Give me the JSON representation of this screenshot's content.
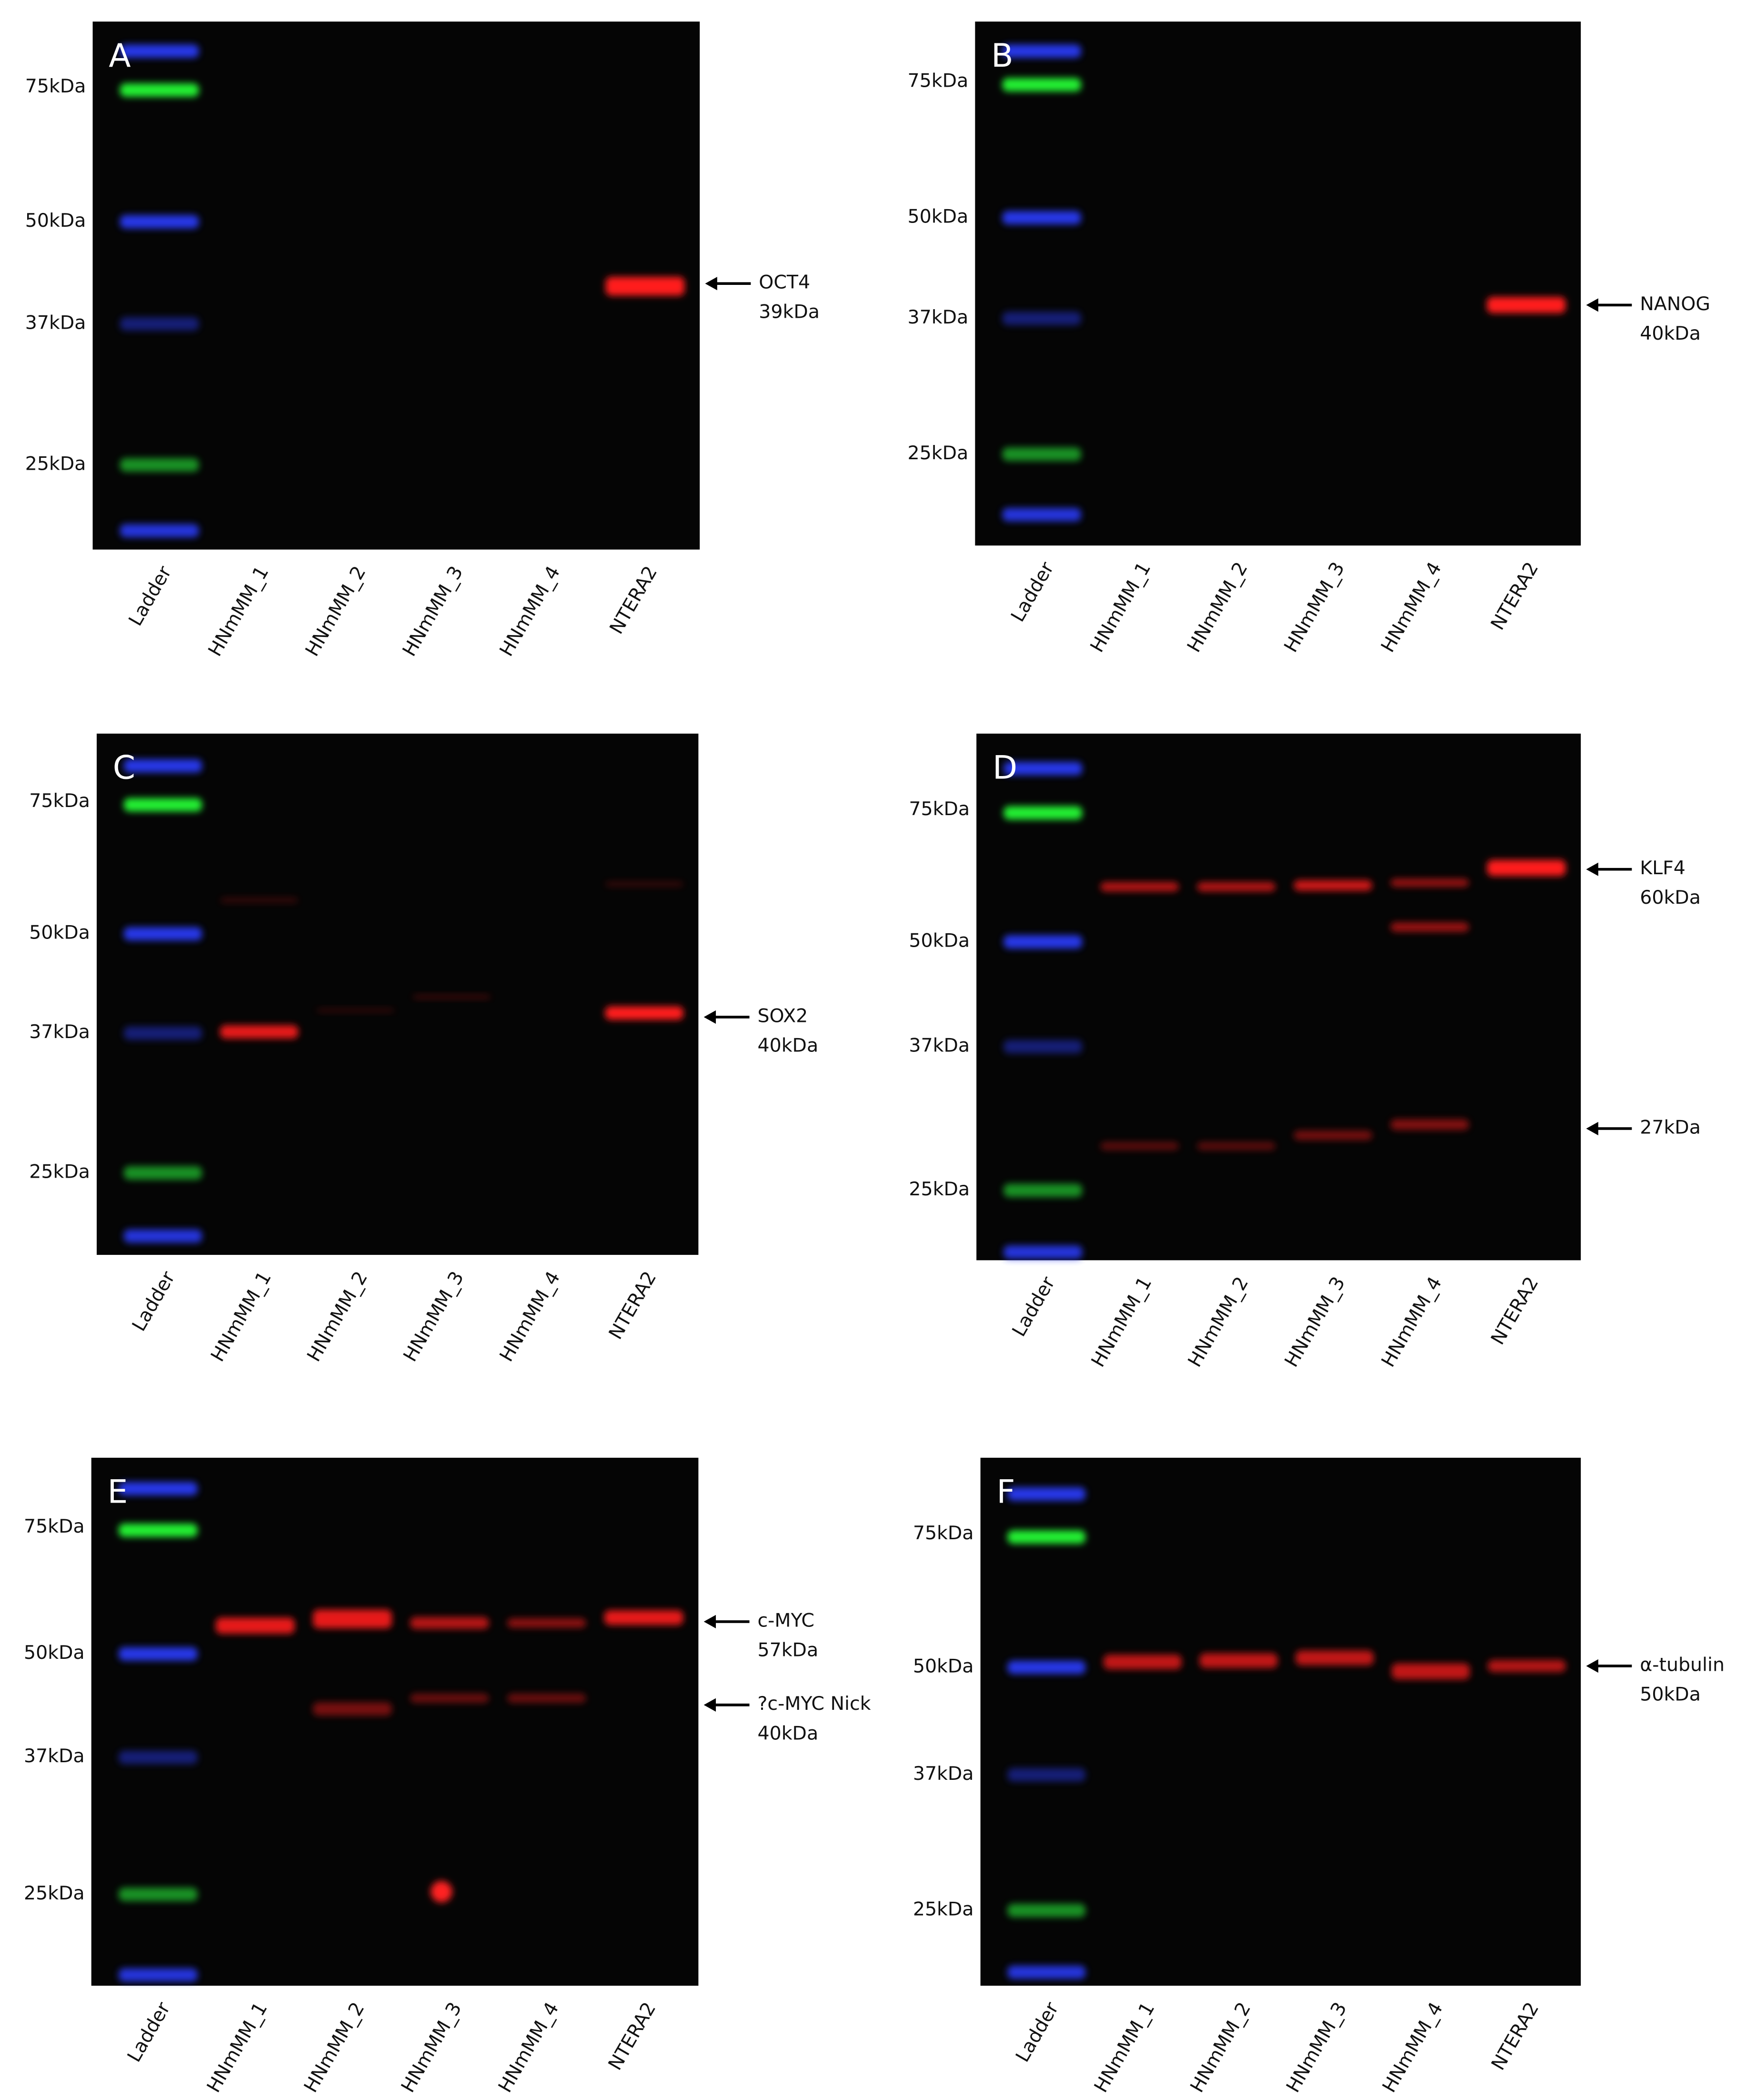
{
  "panels": [
    {
      "letter": "A",
      "markers": [
        "75kDa",
        "50kDa",
        "37kDa",
        "25kDa"
      ],
      "lanes": [
        "Ladder",
        "HNmMM_1",
        "HNmMM_2",
        "HNmMM_3",
        "HNmMM_4",
        "NTERA2"
      ],
      "annotations": [
        {
          "lines": [
            "OCT4",
            "39kDa"
          ]
        }
      ]
    },
    {
      "letter": "B",
      "markers": [
        "75kDa",
        "50kDa",
        "37kDa",
        "25kDa"
      ],
      "lanes": [
        "Ladder",
        "HNmMM_1",
        "HNmMM_2",
        "HNmMM_3",
        "HNmMM_4",
        "NTERA2"
      ],
      "annotations": [
        {
          "lines": [
            "NANOG",
            "40kDa"
          ]
        }
      ]
    },
    {
      "letter": "C",
      "markers": [
        "75kDa",
        "50kDa",
        "37kDa",
        "25kDa"
      ],
      "lanes": [
        "Ladder",
        "HNmMM_1",
        "HNmMM_2",
        "HNmMM_3",
        "HNmMM_4",
        "NTERA2"
      ],
      "annotations": [
        {
          "lines": [
            "SOX2",
            "40kDa"
          ]
        }
      ]
    },
    {
      "letter": "D",
      "markers": [
        "75kDa",
        "50kDa",
        "37kDa",
        "25kDa"
      ],
      "lanes": [
        "Ladder",
        "HNmMM_1",
        "HNmMM_2",
        "HNmMM_3",
        "HNmMM_4",
        "NTERA2"
      ],
      "annotations": [
        {
          "lines": [
            "KLF4",
            "60kDa"
          ]
        },
        {
          "lines": [
            "27kDa"
          ]
        }
      ]
    },
    {
      "letter": "E",
      "markers": [
        "75kDa",
        "50kDa",
        "37kDa",
        "25kDa"
      ],
      "lanes": [
        "Ladder",
        "HNmMM_1",
        "HNmMM_2",
        "HNmMM_3",
        "HNmMM_4",
        "NTERA2"
      ],
      "annotations": [
        {
          "lines": [
            "c-MYC",
            "57kDa"
          ]
        },
        {
          "lines": [
            "?c-MYC Nick",
            "40kDa"
          ]
        }
      ]
    },
    {
      "letter": "F",
      "markers": [
        "75kDa",
        "50kDa",
        "37kDa",
        "25kDa"
      ],
      "lanes": [
        "Ladder",
        "HNmMM_1",
        "HNmMM_2",
        "HNmMM_3",
        "HNmMM_4",
        "NTERA2"
      ],
      "annotations": [
        {
          "lines": [
            "α-tubulin",
            "50kDa"
          ]
        }
      ]
    }
  ]
}
